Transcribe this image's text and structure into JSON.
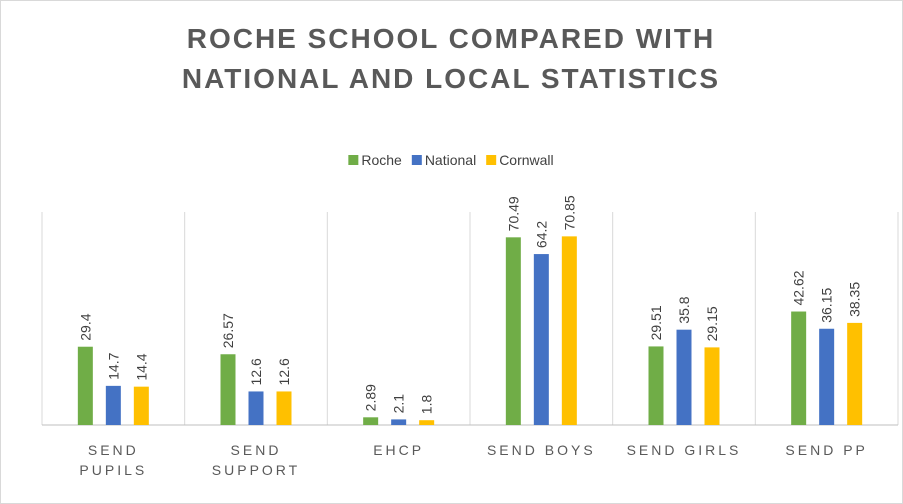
{
  "chart_data": {
    "type": "bar",
    "title": "ROCHE SCHOOL COMPARED WITH NATIONAL AND LOCAL STATISTICS",
    "categories": [
      "SEND PUPILS",
      "SEND SUPPORT",
      "EHCP",
      "SEND BOYS",
      "SEND GIRLS",
      "SEND PP"
    ],
    "series": [
      {
        "name": "Roche",
        "color": "#70ad47",
        "values": [
          29.4,
          26.57,
          2.89,
          70.49,
          29.51,
          42.62
        ]
      },
      {
        "name": "National",
        "color": "#4472c4",
        "values": [
          14.7,
          12.6,
          2.1,
          64.2,
          35.8,
          36.15
        ]
      },
      {
        "name": "Cornwall",
        "color": "#ffc000",
        "values": [
          14.4,
          12.6,
          1.8,
          70.85,
          29.15,
          38.35
        ]
      }
    ],
    "ylim": [
      0,
      80
    ],
    "legend": "top"
  }
}
